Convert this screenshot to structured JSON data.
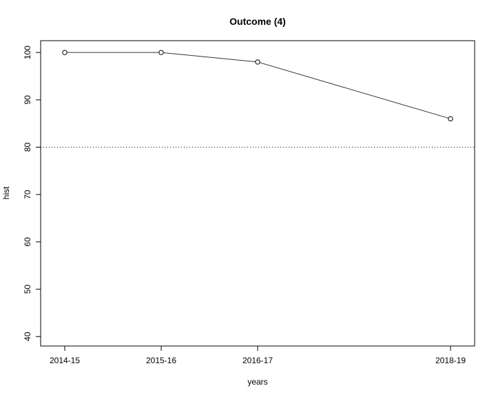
{
  "chart_data": {
    "type": "line",
    "title": "Outcome (4)",
    "xlabel": "years",
    "ylabel": "hist",
    "x_labels": [
      "2014-15",
      "2015-16",
      "2016-17",
      "2018-19"
    ],
    "x_positions": [
      1,
      2,
      3,
      5
    ],
    "xlim": [
      0.75,
      5.25
    ],
    "series": [
      {
        "values": [
          100,
          100,
          98,
          86
        ],
        "marker": "open-circle",
        "color": "#333333"
      }
    ],
    "ylim": [
      38,
      102.5
    ],
    "yticks": [
      40,
      50,
      60,
      70,
      80,
      90,
      100
    ],
    "reference_line": {
      "y": 80,
      "style": "dotted"
    },
    "grid": false
  }
}
